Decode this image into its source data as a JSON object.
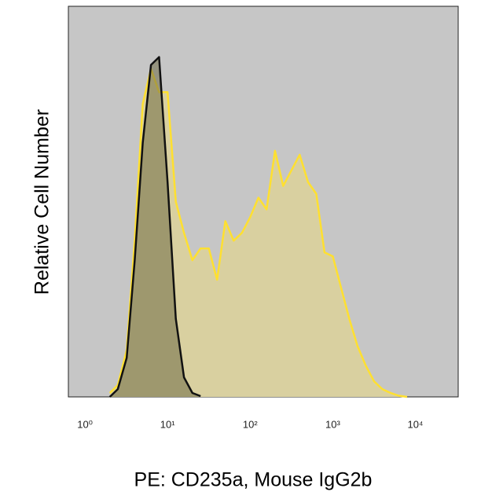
{
  "chart_data": {
    "type": "histogram-overlay",
    "xlabel": "PE: CD235a, Mouse IgG2b",
    "ylabel": "Relative Cell Number",
    "xscale": "log",
    "xlim": [
      0.63,
      33000
    ],
    "ylim": [
      0,
      100
    ],
    "xticks": [
      {
        "value": 1,
        "label": "10⁰"
      },
      {
        "value": 10,
        "label": "10¹"
      },
      {
        "value": 100,
        "label": "10²"
      },
      {
        "value": 1000,
        "label": "10³"
      },
      {
        "value": 10000,
        "label": "10⁴"
      }
    ],
    "background": "#c6c6c6",
    "x": [
      2,
      2.5,
      3.2,
      4,
      5,
      6.3,
      7.9,
      10,
      12.6,
      15.8,
      20,
      25.1,
      31.6,
      39.8,
      50.1,
      63.1,
      79.4,
      100,
      126,
      158,
      200,
      251,
      316,
      398,
      501,
      631,
      794,
      1000,
      1259,
      1585,
      1995,
      2512,
      3162,
      3981,
      5012,
      6310,
      7943
    ],
    "series": [
      {
        "color": "#ffe030",
        "fill": "#d9d0a0",
        "values": [
          1,
          3,
          12,
          40,
          75,
          84,
          78,
          78,
          50,
          42,
          35,
          38,
          38,
          30,
          45,
          40,
          42,
          46,
          51,
          48,
          63,
          54,
          58,
          62,
          55,
          52,
          37,
          36,
          28,
          20,
          13,
          8,
          4,
          2,
          1,
          0.3,
          0
        ]
      },
      {
        "color": "#111111",
        "fill": "rgba(110,105,70,0.55)",
        "values": [
          0,
          2,
          10,
          35,
          65,
          85,
          87,
          55,
          20,
          5,
          1,
          0.2,
          null,
          null,
          null,
          null,
          null,
          null,
          null,
          null,
          null,
          null,
          null,
          null,
          null,
          null,
          null,
          null,
          null,
          null,
          null,
          null,
          null,
          null,
          null,
          null,
          null
        ]
      }
    ]
  }
}
